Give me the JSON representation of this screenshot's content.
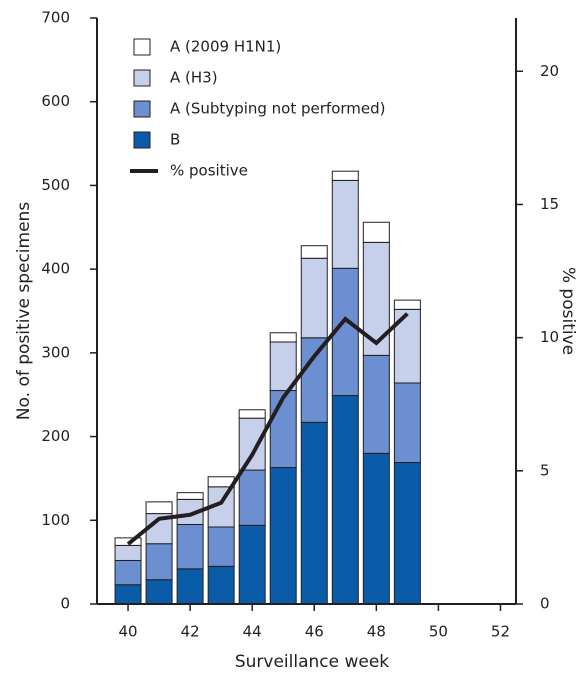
{
  "chart_data": {
    "type": "bar",
    "stacked": true,
    "x": [
      40,
      41,
      42,
      43,
      44,
      45,
      46,
      47,
      48,
      49
    ],
    "x_label": "Surveillance week",
    "y_label": "No. of positive specimens",
    "y2_label": "% positive",
    "xlim": [
      39,
      52.5
    ],
    "xticks": [
      40,
      42,
      44,
      46,
      48,
      50,
      52
    ],
    "ylim": [
      0,
      700
    ],
    "yticks": [
      0,
      100,
      200,
      300,
      400,
      500,
      600,
      700
    ],
    "y2lim": [
      0,
      22
    ],
    "y2ticks": [
      0,
      5,
      10,
      15,
      20
    ],
    "grid": false,
    "legend": "upper left",
    "series": [
      {
        "name": "B",
        "color": "#0b5ca8",
        "values": [
          23,
          29,
          42,
          45,
          94,
          163,
          217,
          249,
          180,
          169
        ]
      },
      {
        "name": "A (Subtyping not performed)",
        "color": "#6b8fd0",
        "values": [
          29,
          43,
          53,
          47,
          66,
          92,
          101,
          152,
          117,
          95
        ]
      },
      {
        "name": "A (H3)",
        "color": "#c6d0ea",
        "values": [
          18,
          36,
          30,
          48,
          62,
          58,
          95,
          105,
          135,
          88
        ]
      },
      {
        "name": "A (2009 H1N1)",
        "color": "#ffffff",
        "values": [
          9,
          14,
          8,
          12,
          10,
          11,
          15,
          11,
          24,
          11
        ]
      },
      {
        "name": "% positive",
        "color": "#231f20",
        "type": "line",
        "axis": "y2",
        "values": [
          2.25,
          3.2,
          3.35,
          3.8,
          5.6,
          7.75,
          9.3,
          10.7,
          9.8,
          10.9
        ]
      }
    ]
  }
}
